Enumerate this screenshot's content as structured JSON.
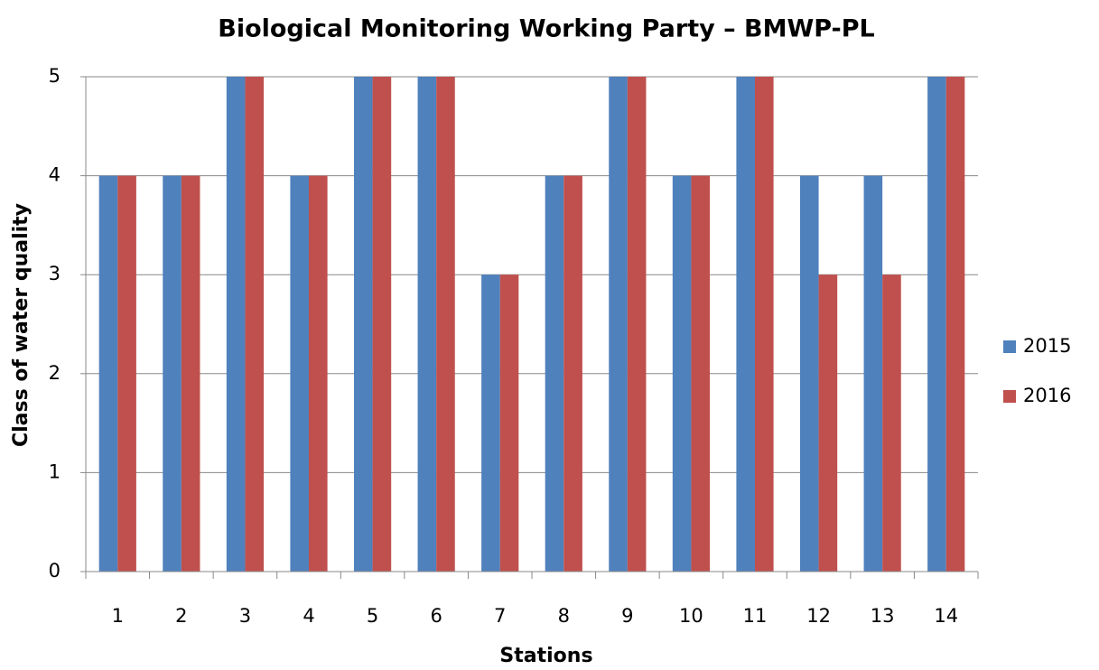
{
  "chart_data": {
    "type": "bar",
    "title": "Biological Monitoring Working Party – BMWP-PL",
    "x_label": "Stations",
    "y_label": "Class of water quality",
    "categories": [
      "1",
      "2",
      "3",
      "4",
      "5",
      "6",
      "7",
      "8",
      "9",
      "10",
      "11",
      "12",
      "13",
      "14"
    ],
    "series": [
      {
        "name": "2015",
        "color": "#4f81bd",
        "values": [
          4,
          4,
          5,
          4,
          5,
          5,
          3,
          4,
          5,
          4,
          5,
          4,
          4,
          5
        ]
      },
      {
        "name": "2016",
        "color": "#c0504d",
        "values": [
          4,
          4,
          5,
          4,
          5,
          5,
          3,
          4,
          5,
          4,
          5,
          3,
          3,
          5
        ]
      }
    ],
    "ylim": [
      0,
      5
    ],
    "yticks": [
      0,
      1,
      2,
      3,
      4,
      5
    ],
    "grid": true,
    "legend": "right"
  }
}
